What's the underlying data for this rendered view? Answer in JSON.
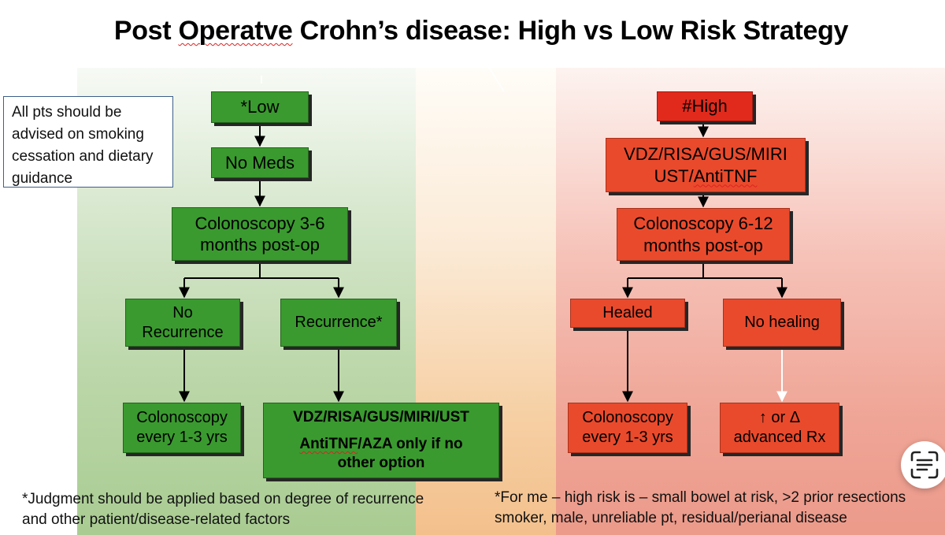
{
  "title": {
    "before": "Post ",
    "misspelled": "Operatve",
    "after": " Crohn’s disease: High vs Low Risk Strategy"
  },
  "note": "All pts should be advised on smoking cessation and dietary guidance",
  "low": {
    "header": "*Low",
    "meds": "No Meds",
    "colonoscopy": [
      "Colonoscopy 3-6",
      "months post-op"
    ],
    "no_recurrence": [
      "No",
      "Recurrence"
    ],
    "recurrence": "Recurrence*",
    "followup": [
      "Colonoscopy",
      "every 1-3 yrs"
    ],
    "treatment": {
      "line1": "VDZ/RISA/GUS/MIRI/UST",
      "line2_word": "AntiTNF",
      "line2_rest": "/AZA only if no",
      "line3": "other option"
    }
  },
  "high": {
    "header": "#High",
    "meds": {
      "line1": "VDZ/RISA/GUS/MIRI",
      "line2_a": "UST/",
      "line2_word": "AntiTNF"
    },
    "colonoscopy": [
      "Colonoscopy 6-12",
      "months post-op"
    ],
    "healed": "Healed",
    "no_healing": "No healing",
    "followup": [
      "Colonoscopy",
      "every 1-3 yrs"
    ],
    "escalate": [
      "↑ or Δ",
      "advanced Rx"
    ]
  },
  "footnotes": {
    "left": [
      "*Judgment should be applied based on degree of recurrence",
      "and other patient/disease-related factors"
    ],
    "right": [
      "*For me – high risk is – small bowel at risk, >2 prior resections",
      "smoker, male, unreliable pt, residual/perianal disease"
    ]
  },
  "icons": {
    "scan": "text-scan-icon"
  }
}
